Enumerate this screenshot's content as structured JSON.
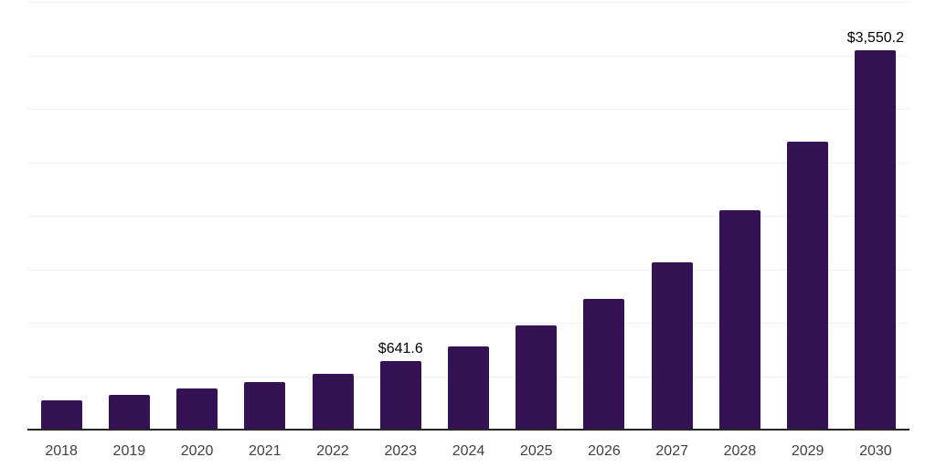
{
  "chart_data": {
    "type": "bar",
    "title": "",
    "xlabel": "",
    "ylabel": "",
    "categories": [
      "2018",
      "2019",
      "2020",
      "2021",
      "2022",
      "2023",
      "2024",
      "2025",
      "2026",
      "2027",
      "2028",
      "2029",
      "2030"
    ],
    "values": [
      276,
      327,
      386,
      448,
      524,
      641.6,
      778,
      977,
      1224,
      1568,
      2049,
      2689,
      3550.2
    ],
    "data_labels": [
      {
        "category": "2023",
        "text": "$641.6"
      },
      {
        "category": "2030",
        "text": "$3,550.2"
      }
    ],
    "ylim": [
      0,
      4000
    ],
    "grid_step": 500,
    "grid": "horizontal",
    "y_tick_labels_shown": false,
    "legend": false
  },
  "style": {
    "bar_color": "#341253",
    "gridline_color": "#f0f0f0",
    "axis_line_color": "#262626",
    "tick_label_color": "#404040",
    "data_label_color": "#000000",
    "background_color": "#ffffff"
  }
}
